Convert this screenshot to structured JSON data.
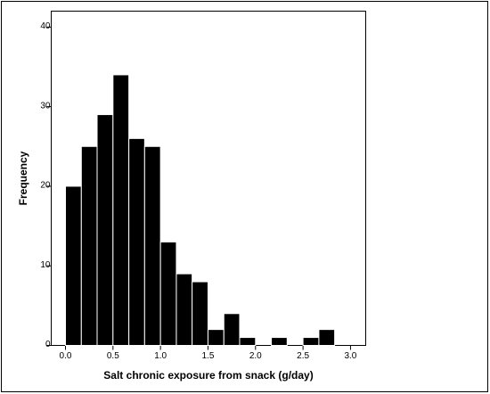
{
  "chart_data": {
    "type": "histogram",
    "xlabel": "Salt chronic exposure from snack (g/day)",
    "ylabel": "Frequency",
    "bins": [
      0,
      0.167,
      0.333,
      0.5,
      0.667,
      0.833,
      1.0,
      1.167,
      1.333,
      1.5,
      1.667,
      1.833,
      2.0,
      2.167,
      2.333,
      2.5,
      2.667,
      2.833
    ],
    "values": [
      20,
      25,
      29,
      34,
      26,
      25,
      13,
      9,
      8,
      2,
      4,
      1,
      0,
      1,
      0,
      1,
      2
    ],
    "color": "#000000",
    "xlim": [
      -0.15,
      3.16
    ],
    "ylim": [
      0,
      42
    ],
    "xticks": [
      {
        "value": 0,
        "label": "0.0"
      },
      0.5,
      {
        "value": 1,
        "label": "1.0"
      },
      1.5,
      {
        "value": 2,
        "label": "2.0"
      },
      2.5,
      {
        "value": 3,
        "label": "3.0"
      }
    ],
    "yticks": [
      0,
      10,
      20,
      30,
      40
    ]
  }
}
